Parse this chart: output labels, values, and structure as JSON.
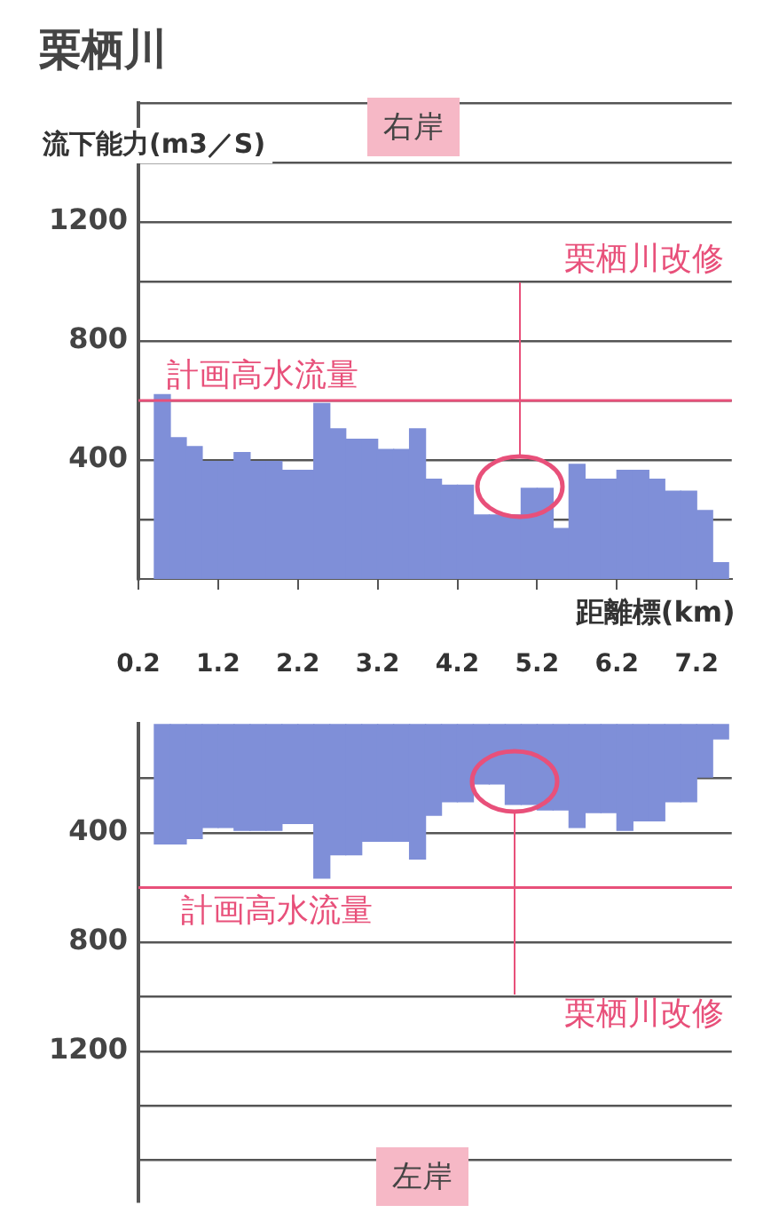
{
  "chart_data": [
    {
      "type": "bar",
      "title": "栗栖川",
      "subtitle": "右岸",
      "ylabel": "流下能力(m3／S)",
      "xlabel": "距離標(km)",
      "x": [
        0.5,
        0.7,
        0.9,
        1.1,
        1.3,
        1.5,
        1.7,
        1.9,
        2.1,
        2.3,
        2.5,
        2.7,
        2.9,
        3.1,
        3.3,
        3.5,
        3.7,
        3.9,
        4.1,
        4.3,
        4.5,
        4.7,
        4.9,
        5.1,
        5.3,
        5.5,
        5.7,
        5.9,
        6.1,
        6.3,
        6.5,
        6.7,
        6.9,
        7.1,
        7.3,
        7.5
      ],
      "series": [
        {
          "color": "#7f8fd8",
          "values": [
            620,
            475,
            445,
            395,
            395,
            425,
            395,
            395,
            365,
            365,
            590,
            505,
            470,
            470,
            435,
            435,
            505,
            335,
            315,
            315,
            215,
            215,
            215,
            305,
            305,
            170,
            385,
            335,
            335,
            365,
            365,
            335,
            295,
            295,
            230,
            55
          ]
        }
      ],
      "xlim": [
        0.2,
        7.64
      ],
      "xticks": [
        0.2,
        1.2,
        2.2,
        3.2,
        4.2,
        5.2,
        6.2,
        7.2
      ],
      "ylim": [
        0,
        1600
      ],
      "yticks": [
        {
          "value": 200,
          "label": null
        },
        400,
        {
          "value": 600,
          "label": null
        },
        800,
        {
          "value": 1000,
          "label": null
        },
        1200,
        {
          "value": 1400,
          "label": null
        },
        {
          "value": 1600,
          "label": null
        }
      ],
      "grid": "y",
      "ref_lines": [
        {
          "axis": "y",
          "value": 600,
          "label": "計画高水流量",
          "color": "#e8507a"
        }
      ],
      "annotations": [
        "栗栖川改修"
      ]
    },
    {
      "type": "bar",
      "subtitle": "左岸",
      "x": [
        0.5,
        0.7,
        0.9,
        1.1,
        1.3,
        1.5,
        1.7,
        1.9,
        2.1,
        2.3,
        2.5,
        2.7,
        2.9,
        3.1,
        3.3,
        3.5,
        3.7,
        3.9,
        4.1,
        4.3,
        4.5,
        4.7,
        4.9,
        5.1,
        5.3,
        5.5,
        5.7,
        5.9,
        6.1,
        6.3,
        6.5,
        6.7,
        6.9,
        7.1,
        7.3,
        7.5
      ],
      "series": [
        {
          "color": "#7f8fd8",
          "values": [
            440,
            440,
            420,
            380,
            380,
            390,
            390,
            390,
            365,
            365,
            565,
            480,
            480,
            430,
            430,
            430,
            495,
            335,
            285,
            285,
            220,
            220,
            295,
            295,
            315,
            315,
            380,
            325,
            325,
            390,
            355,
            355,
            285,
            285,
            195,
            55
          ]
        }
      ],
      "xlim": [
        0.2,
        7.64
      ],
      "ylim": [
        1750,
        0
      ],
      "yticks": [
        {
          "value": 200,
          "label": null
        },
        400,
        {
          "value": 600,
          "label": null
        },
        800,
        {
          "value": 1000,
          "label": null
        },
        1200,
        {
          "value": 1400,
          "label": null
        },
        {
          "value": 1600,
          "label": null
        }
      ],
      "grid": "y",
      "tick_labels": "y",
      "ref_lines": [
        {
          "axis": "y",
          "value": 600,
          "label": "計画高水流量",
          "color": "#e8507a"
        }
      ],
      "annotations": [
        "栗栖川改修"
      ]
    }
  ]
}
